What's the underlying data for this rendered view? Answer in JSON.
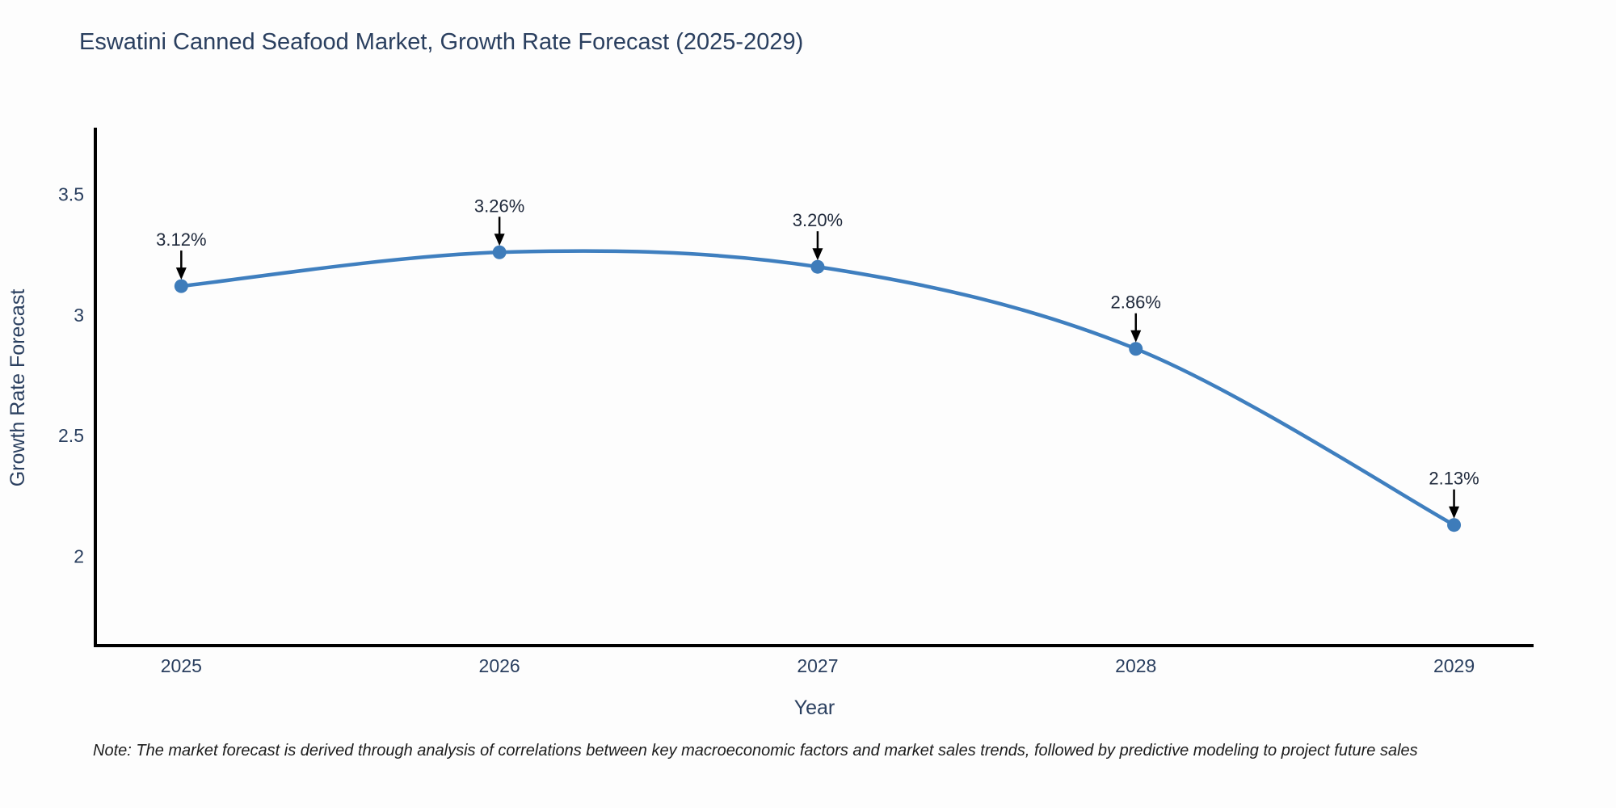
{
  "note": "Note: The market forecast is derived through analysis of correlations between key macroeconomic factors and market sales trends, followed by predictive modeling to project future sales",
  "chart_data": {
    "type": "line",
    "title": "Eswatini Canned Seafood Market, Growth Rate Forecast (2025-2029)",
    "xlabel": "Year",
    "ylabel": "Growth Rate Forecast",
    "x": [
      2025,
      2026,
      2027,
      2028,
      2029
    ],
    "y": [
      3.12,
      3.26,
      3.2,
      2.86,
      2.13
    ],
    "point_labels": [
      "3.12%",
      "3.26%",
      "3.20%",
      "2.86%",
      "2.13%"
    ],
    "xticks": [
      "2025",
      "2026",
      "2027",
      "2028",
      "2029"
    ],
    "yticks": [
      2,
      2.5,
      3,
      3.5
    ],
    "xlim": [
      2024.73,
      2029.25
    ],
    "ylim": [
      1.63,
      3.77
    ],
    "grid": false,
    "legend": "none",
    "line_shape": "spline",
    "line_color": "#3f7fbf",
    "marker_color": "#3e7cba",
    "arrow_color": "#000000",
    "text_color": "#2a3f5f"
  }
}
